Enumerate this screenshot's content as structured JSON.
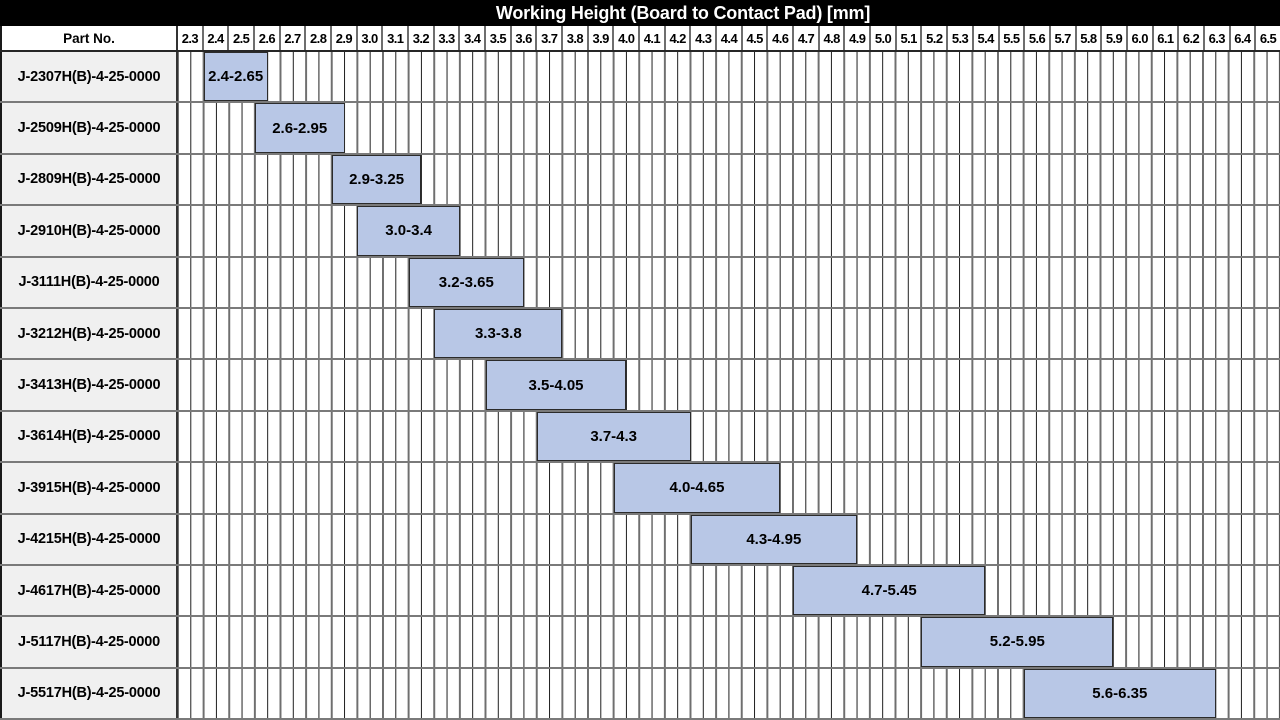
{
  "title": "Working Height (Board to Contact Pad) [mm]",
  "header": {
    "part_no_label": "Part No."
  },
  "colors": {
    "bar_fill": "#b8c7e6",
    "bar_border": "#2b2b2b",
    "title_bg": "#000000",
    "title_text": "#ffffff",
    "part_cell_bg": "#f0f0f0",
    "major_gridline": "#6f6f6f",
    "minor_gridline": "#1c1c1c",
    "row_separator": "#7a7a7a"
  },
  "chart_data": {
    "type": "bar",
    "variant": "horizontal-range-gantt",
    "title": "Working Height (Board to Contact Pad) [mm]",
    "xlabel": "Working Height (Board to Contact Pad) [mm]",
    "ylabel": "Part No.",
    "axis": {
      "min": 2.3,
      "max": 6.6,
      "major_step": 0.1,
      "minor_step": 0.05,
      "grid": true,
      "tick_labels": [
        "2.3",
        "2.4",
        "2.5",
        "2.6",
        "2.7",
        "2.8",
        "2.9",
        "3.0",
        "3.1",
        "3.2",
        "3.3",
        "3.4",
        "3.5",
        "3.6",
        "3.7",
        "3.8",
        "3.9",
        "4.0",
        "4.1",
        "4.2",
        "4.3",
        "4.4",
        "4.5",
        "4.6",
        "4.7",
        "4.8",
        "4.9",
        "5.0",
        "5.1",
        "5.2",
        "5.3",
        "5.4",
        "5.5",
        "5.6",
        "5.7",
        "5.8",
        "5.9",
        "6.0",
        "6.1",
        "6.2",
        "6.3",
        "6.4",
        "6.5"
      ]
    },
    "rows": [
      {
        "part_no": "J-2307H(B)-4-25-0000",
        "start": 2.4,
        "end": 2.65,
        "label": "2.4-2.65"
      },
      {
        "part_no": "J-2509H(B)-4-25-0000",
        "start": 2.6,
        "end": 2.95,
        "label": "2.6-2.95"
      },
      {
        "part_no": "J-2809H(B)-4-25-0000",
        "start": 2.9,
        "end": 3.25,
        "label": "2.9-3.25"
      },
      {
        "part_no": "J-2910H(B)-4-25-0000",
        "start": 3.0,
        "end": 3.4,
        "label": "3.0-3.4"
      },
      {
        "part_no": "J-3111H(B)-4-25-0000",
        "start": 3.2,
        "end": 3.65,
        "label": "3.2-3.65"
      },
      {
        "part_no": "J-3212H(B)-4-25-0000",
        "start": 3.3,
        "end": 3.8,
        "label": "3.3-3.8"
      },
      {
        "part_no": "J-3413H(B)-4-25-0000",
        "start": 3.5,
        "end": 4.05,
        "label": "3.5-4.05"
      },
      {
        "part_no": "J-3614H(B)-4-25-0000",
        "start": 3.7,
        "end": 4.3,
        "label": "3.7-4.3"
      },
      {
        "part_no": "J-3915H(B)-4-25-0000",
        "start": 4.0,
        "end": 4.65,
        "label": "4.0-4.65"
      },
      {
        "part_no": "J-4215H(B)-4-25-0000",
        "start": 4.3,
        "end": 4.95,
        "label": "4.3-4.95"
      },
      {
        "part_no": "J-4617H(B)-4-25-0000",
        "start": 4.7,
        "end": 5.45,
        "label": "4.7-5.45"
      },
      {
        "part_no": "J-5117H(B)-4-25-0000",
        "start": 5.2,
        "end": 5.95,
        "label": "5.2-5.95"
      },
      {
        "part_no": "J-5517H(B)-4-25-0000",
        "start": 5.6,
        "end": 6.35,
        "label": "5.6-6.35"
      }
    ],
    "bar_color": "#b8c7e6",
    "legend": null
  }
}
